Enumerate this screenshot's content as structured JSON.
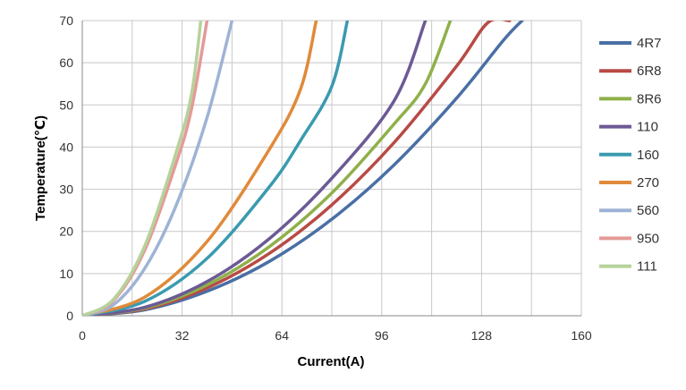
{
  "chart_data": {
    "type": "line",
    "title": "",
    "xlabel": "Current(A)",
    "ylabel": "Temperature(℃)",
    "xlim": [
      0,
      160
    ],
    "ylim": [
      0,
      70
    ],
    "x_ticks": [
      "0",
      "32",
      "64",
      "96",
      "128",
      "160"
    ],
    "y_ticks": [
      "0",
      "10",
      "20",
      "30",
      "40",
      "50",
      "60",
      "70"
    ],
    "grid": true,
    "legend_position": "right",
    "series": [
      {
        "name": "4R7",
        "color": "#4a6fa5",
        "x": [
          0,
          20,
          40,
          60,
          80,
          100,
          120,
          135,
          141
        ],
        "y": [
          0,
          1.4,
          5.8,
          12.9,
          22.9,
          35.8,
          51.6,
          65.3,
          70
        ]
      },
      {
        "name": "6R8",
        "color": "#b84a45",
        "x": [
          0,
          20,
          40,
          60,
          80,
          100,
          120,
          130,
          137
        ],
        "y": [
          0,
          1.6,
          6.6,
          14.8,
          26.3,
          41.1,
          59.2,
          69.5,
          70
        ]
      },
      {
        "name": "8R6",
        "color": "#8fb04a",
        "x": [
          0,
          20,
          40,
          60,
          80,
          100,
          110,
          118
        ],
        "y": [
          0,
          1.8,
          7.3,
          16.4,
          29.1,
          45.5,
          55.0,
          70
        ]
      },
      {
        "name": "110",
        "color": "#6b5a95",
        "x": [
          0,
          20,
          40,
          60,
          80,
          100,
          110
        ],
        "y": [
          0,
          2.0,
          8.1,
          18.3,
          32.6,
          51.0,
          70
        ]
      },
      {
        "name": "160",
        "color": "#3a9ab0",
        "x": [
          0,
          20,
          40,
          60,
          70,
          80,
          85
        ],
        "y": [
          0,
          3.4,
          13.6,
          30.6,
          41.6,
          54.4,
          70
        ]
      },
      {
        "name": "270",
        "color": "#e08a3a",
        "x": [
          0,
          20,
          40,
          60,
          70,
          75
        ],
        "y": [
          0,
          4.4,
          17.6,
          39.5,
          53.8,
          70
        ]
      },
      {
        "name": "560",
        "color": "#9fb3d6",
        "x": [
          0,
          10,
          20,
          30,
          40,
          48
        ],
        "y": [
          0,
          2.6,
          11.2,
          26.0,
          47.0,
          70
        ]
      },
      {
        "name": "950",
        "color": "#e49a98",
        "x": [
          0,
          10,
          20,
          30,
          35,
          40
        ],
        "y": [
          0,
          3.6,
          15.5,
          36.0,
          49.0,
          70
        ]
      },
      {
        "name": "111",
        "color": "#b6d29b",
        "x": [
          0,
          10,
          20,
          30,
          35,
          38
        ],
        "y": [
          0,
          3.9,
          16.5,
          38.5,
          52.4,
          70
        ]
      }
    ]
  }
}
